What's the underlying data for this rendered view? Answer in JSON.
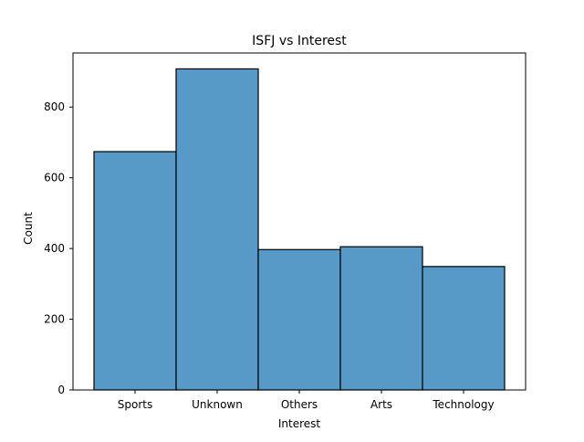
{
  "chart_data": {
    "type": "bar",
    "title": "ISFJ vs Interest",
    "xlabel": "Interest",
    "ylabel": "Count",
    "categories": [
      "Sports",
      "Unknown",
      "Others",
      "Arts",
      "Technology"
    ],
    "values": [
      674,
      908,
      397,
      405,
      349
    ],
    "ylim": [
      0,
      953
    ],
    "yticks": [
      0,
      200,
      400,
      600,
      800
    ],
    "grid": false,
    "bar_color": "#5799c7",
    "edge_color": "#000000"
  }
}
